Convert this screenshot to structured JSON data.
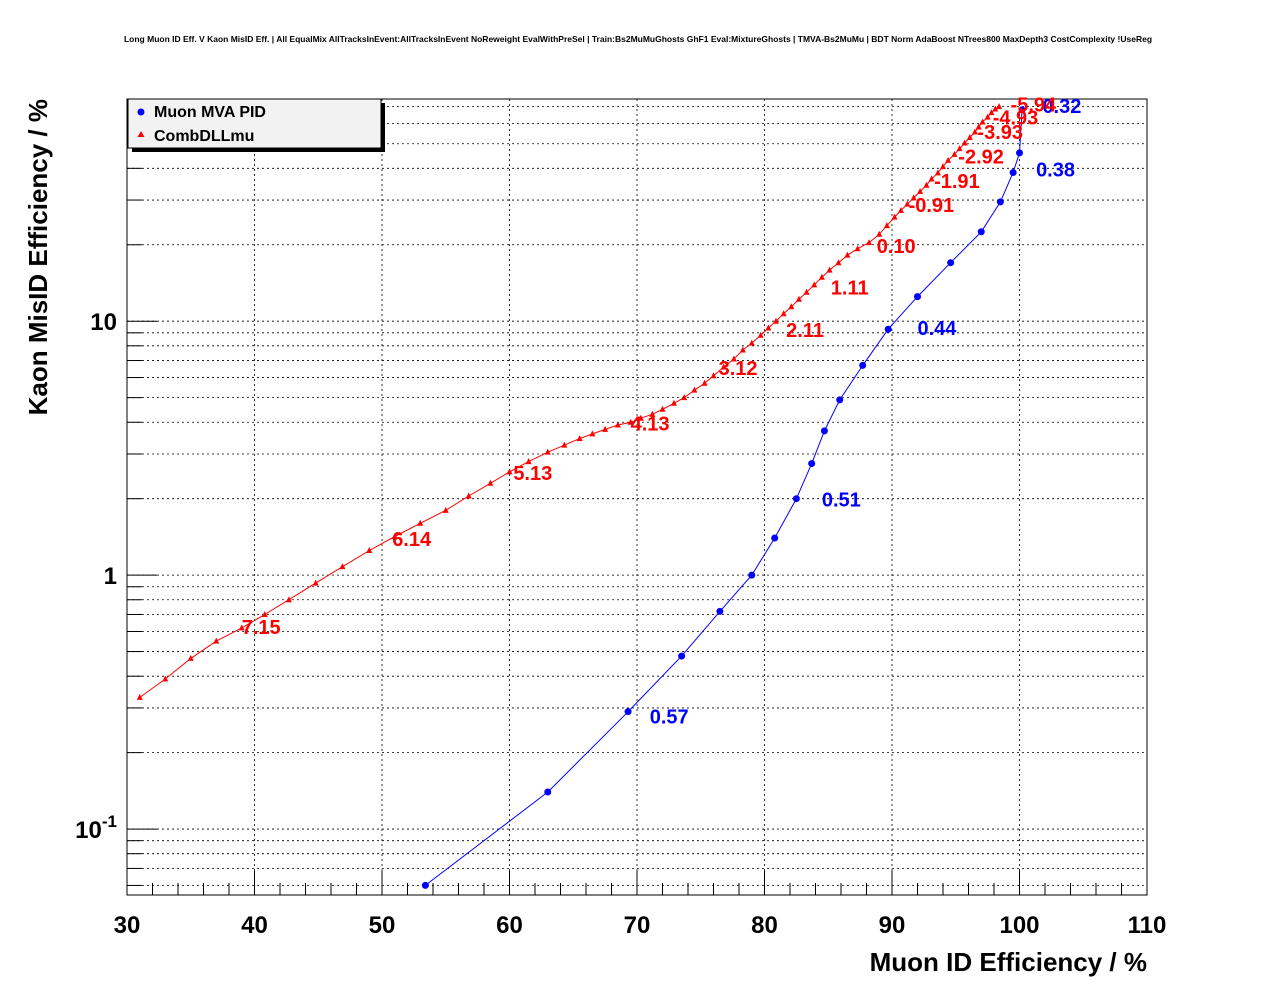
{
  "chart_data": {
    "type": "line",
    "title": "Long Muon ID Eff. V Kaon MisID Eff. | All EqualMix AllTracksInEvent:AllTracksInEvent NoReweight EvalWithPreSel | Train:Bs2MuMuGhosts GhF1 Eval:MixtureGhosts | TMVA-Bs2MuMu | BDT Norm AdaBoost NTrees800 MaxDepth3 CostComplexity !UseReg",
    "xlabel": "Muon ID Efficiency / %",
    "ylabel": "Kaon MisID Efficiency / %",
    "xlim": [
      30,
      110
    ],
    "ylim": [
      0.055,
      75
    ],
    "yscale": "log",
    "grid": true,
    "legend_position": "top-left",
    "x_ticks": [
      "30",
      "40",
      "50",
      "60",
      "70",
      "80",
      "90",
      "100",
      "110"
    ],
    "y_ticks": [
      {
        "value": 0.1,
        "base": "10",
        "exp": "-1"
      },
      {
        "value": 1,
        "base": "1",
        "exp": ""
      },
      {
        "value": 10,
        "base": "10",
        "exp": ""
      }
    ],
    "series": [
      {
        "name": "Muon MVA PID",
        "color": "#0000ff",
        "marker": "circle",
        "x": [
          53.4,
          63.0,
          69.3,
          73.5,
          76.5,
          79.0,
          80.8,
          82.5,
          83.7,
          84.7,
          85.9,
          87.7,
          89.7,
          92.0,
          94.6,
          97.0,
          98.5,
          99.5,
          100.0,
          100.2
        ],
        "y": [
          0.06,
          0.14,
          0.29,
          0.48,
          0.72,
          1.0,
          1.4,
          2.0,
          2.75,
          3.7,
          4.9,
          6.7,
          9.3,
          12.5,
          17.0,
          22.5,
          29.5,
          38.5,
          46.0,
          68.0
        ],
        "annotations": [
          {
            "text": "0.57",
            "x": 71.0,
            "y": 0.28
          },
          {
            "text": "0.51",
            "x": 84.5,
            "y": 2.0
          },
          {
            "text": "0.44",
            "x": 92.0,
            "y": 9.5
          },
          {
            "text": "0.38",
            "x": 101.3,
            "y": 40.0
          },
          {
            "text": "0.32",
            "x": 101.8,
            "y": 71.0
          }
        ]
      },
      {
        "name": "CombDLLmu",
        "color": "#ff0000",
        "marker": "triangle",
        "x": [
          31.0,
          33.0,
          35.0,
          37.0,
          39.0,
          40.8,
          42.7,
          44.8,
          46.9,
          49.0,
          51.0,
          53.0,
          55.0,
          56.8,
          58.5,
          60.0,
          61.5,
          63.0,
          64.3,
          65.5,
          66.5,
          67.5,
          68.5,
          69.5,
          70.3,
          71.2,
          72.0,
          72.9,
          73.7,
          74.5,
          75.3,
          76.0,
          76.8,
          77.6,
          78.3,
          79.0,
          79.7,
          80.3,
          80.9,
          81.5,
          82.1,
          82.7,
          83.3,
          83.9,
          84.5,
          85.1,
          85.8,
          86.5,
          87.3,
          88.2,
          89.0,
          89.6,
          90.2,
          90.7,
          91.2,
          91.7,
          92.2,
          92.7,
          93.1,
          93.6,
          94.0,
          94.4,
          94.9,
          95.3,
          95.7,
          96.1,
          96.5,
          96.8,
          97.1,
          97.5,
          97.8,
          98.1,
          98.4
        ],
        "y": [
          0.33,
          0.39,
          0.47,
          0.55,
          0.62,
          0.7,
          0.8,
          0.93,
          1.08,
          1.25,
          1.42,
          1.6,
          1.8,
          2.05,
          2.3,
          2.55,
          2.8,
          3.05,
          3.25,
          3.45,
          3.6,
          3.75,
          3.9,
          4.0,
          4.15,
          4.3,
          4.5,
          4.75,
          5.0,
          5.35,
          5.7,
          6.1,
          6.6,
          7.1,
          7.7,
          8.2,
          8.8,
          9.4,
          10.0,
          10.7,
          11.4,
          12.2,
          13.0,
          13.9,
          14.9,
          15.9,
          17.0,
          18.2,
          19.3,
          20.4,
          22.0,
          23.8,
          25.7,
          27.3,
          28.9,
          30.6,
          32.4,
          34.3,
          36.3,
          38.4,
          40.6,
          43.0,
          45.4,
          47.8,
          50.3,
          52.9,
          55.6,
          58.2,
          60.9,
          63.6,
          66.3,
          68.5,
          70.0
        ],
        "annotations": [
          {
            "text": "7.15",
            "x": 39.0,
            "y": 0.63
          },
          {
            "text": "6.14",
            "x": 50.8,
            "y": 1.4
          },
          {
            "text": "5.13",
            "x": 60.3,
            "y": 2.55
          },
          {
            "text": "4.13",
            "x": 69.5,
            "y": 4.0
          },
          {
            "text": "3.12",
            "x": 76.4,
            "y": 6.6
          },
          {
            "text": "2.11",
            "x": 81.7,
            "y": 9.3
          },
          {
            "text": "1.11",
            "x": 85.2,
            "y": 13.7
          },
          {
            "text": "0.10",
            "x": 88.8,
            "y": 20.0
          },
          {
            "text": "-0.91",
            "x": 91.3,
            "y": 29.0
          },
          {
            "text": "-1.91",
            "x": 93.3,
            "y": 36.0
          },
          {
            "text": "-2.92",
            "x": 95.2,
            "y": 45.0
          },
          {
            "text": "-3.93",
            "x": 96.7,
            "y": 56.0
          },
          {
            "text": "-4.93",
            "x": 97.9,
            "y": 64.0
          },
          {
            "text": "-5.94",
            "x": 99.3,
            "y": 72.0
          }
        ]
      }
    ]
  }
}
